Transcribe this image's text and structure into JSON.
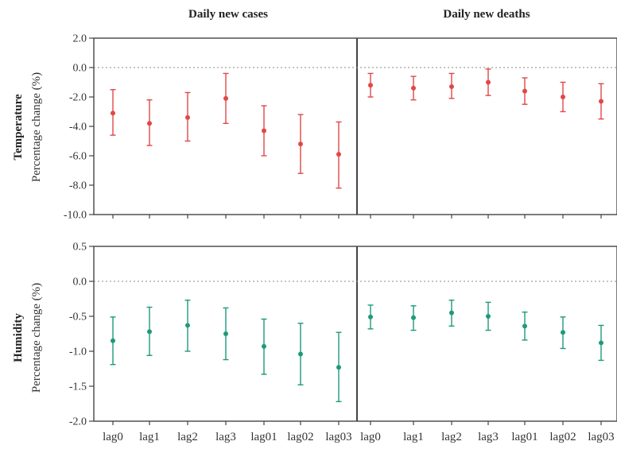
{
  "colors": {
    "temperature": "#e04848",
    "humidity": "#1e9a7a"
  },
  "chart_data": {
    "type": "errorbar",
    "column_titles": [
      "Daily new cases",
      "Daily new deaths"
    ],
    "row_titles": [
      "Temperature",
      "Humidity"
    ],
    "ylabel": "Percentage change (%)",
    "categories": [
      "lag0",
      "lag1",
      "lag2",
      "lag3",
      "lag01",
      "lag02",
      "lag03"
    ],
    "rows": [
      {
        "name": "Temperature",
        "ylim": [
          -10.0,
          2.0
        ],
        "yticks": [
          2.0,
          0.0,
          -2.0,
          -4.0,
          -6.0,
          -8.0,
          -10.0
        ],
        "ytick_labels": [
          "2.0",
          "0.0",
          "-2.0",
          "-4.0",
          "-6.0",
          "-8.0",
          "-10.0"
        ],
        "panels": [
          {
            "column": "Daily new cases",
            "estimate": [
              -3.1,
              -3.8,
              -3.4,
              -2.1,
              -4.3,
              -5.2,
              -5.9
            ],
            "lower": [
              -4.6,
              -5.3,
              -5.0,
              -3.8,
              -6.0,
              -7.2,
              -8.2
            ],
            "upper": [
              -1.5,
              -2.2,
              -1.7,
              -0.4,
              -2.6,
              -3.2,
              -3.7
            ]
          },
          {
            "column": "Daily new deaths",
            "estimate": [
              -1.2,
              -1.4,
              -1.3,
              -1.0,
              -1.6,
              -2.0,
              -2.3
            ],
            "lower": [
              -2.0,
              -2.2,
              -2.1,
              -1.9,
              -2.5,
              -3.0,
              -3.5
            ],
            "upper": [
              -0.4,
              -0.6,
              -0.4,
              -0.1,
              -0.7,
              -1.0,
              -1.1
            ]
          }
        ]
      },
      {
        "name": "Humidity",
        "ylim": [
          -2.0,
          0.5
        ],
        "yticks": [
          0.5,
          0.0,
          -0.5,
          -1.0,
          -1.5,
          -2.0
        ],
        "ytick_labels": [
          "0.5",
          "0.0",
          "-0.5",
          "-1.0",
          "-1.5",
          "-2.0"
        ],
        "panels": [
          {
            "column": "Daily new cases",
            "estimate": [
              -0.85,
              -0.72,
              -0.63,
              -0.75,
              -0.93,
              -1.04,
              -1.23
            ],
            "lower": [
              -1.19,
              -1.06,
              -1.0,
              -1.12,
              -1.33,
              -1.48,
              -1.72
            ],
            "upper": [
              -0.51,
              -0.37,
              -0.27,
              -0.38,
              -0.54,
              -0.6,
              -0.73
            ]
          },
          {
            "column": "Daily new deaths",
            "estimate": [
              -0.51,
              -0.52,
              -0.45,
              -0.5,
              -0.64,
              -0.73,
              -0.88
            ],
            "lower": [
              -0.68,
              -0.7,
              -0.64,
              -0.7,
              -0.84,
              -0.96,
              -1.13
            ],
            "upper": [
              -0.34,
              -0.35,
              -0.27,
              -0.3,
              -0.44,
              -0.51,
              -0.63
            ]
          }
        ]
      }
    ]
  }
}
